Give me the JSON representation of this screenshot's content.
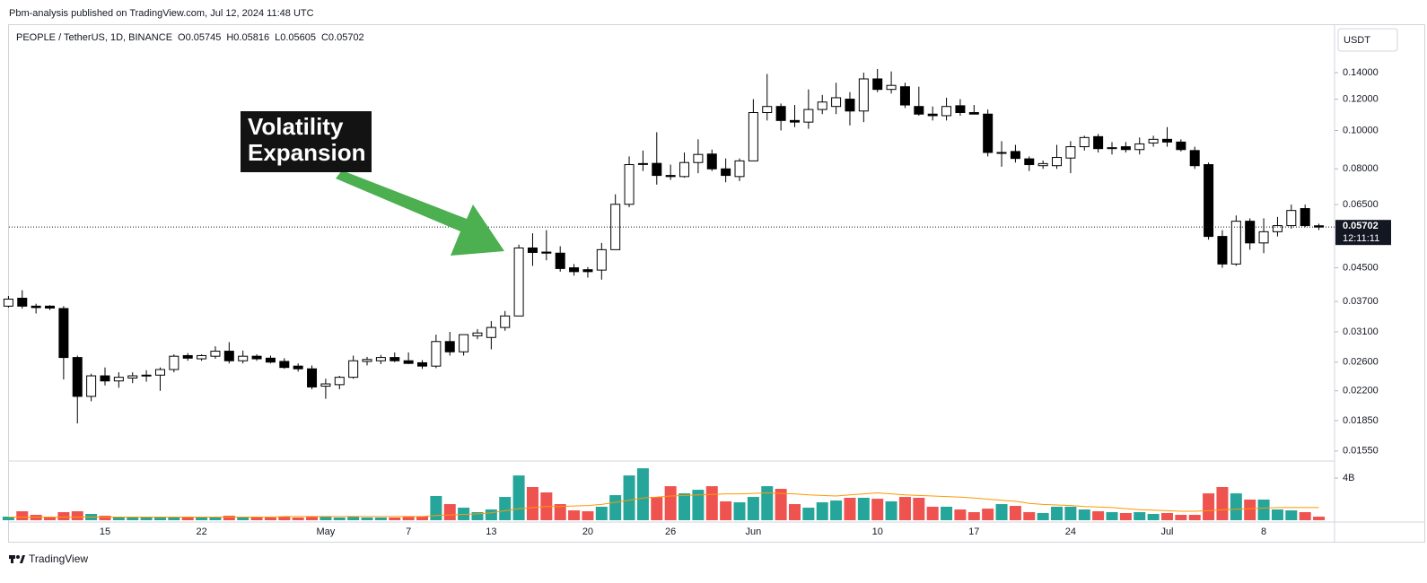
{
  "header": {
    "published": "Pbm-analysis published on TradingView.com, Jul 12, 2024 11:48 UTC"
  },
  "footer": {
    "brand": "TradingView"
  },
  "chart_data": {
    "type": "candlestick",
    "title": "PEOPLE / TetherUS, 1D, BINANCE",
    "legend_ohlc": [
      "O0.05745",
      "H0.05816",
      "L0.05605",
      "C0.05702"
    ],
    "currency": "USDT",
    "countdown": "12:11:11",
    "annotation": [
      "Volatility",
      "Expansion"
    ],
    "categories": [
      null,
      null,
      null,
      null,
      null,
      null,
      null,
      "15",
      null,
      null,
      null,
      null,
      null,
      null,
      "22",
      null,
      null,
      null,
      null,
      null,
      null,
      null,
      null,
      "May",
      null,
      null,
      null,
      null,
      null,
      "7",
      null,
      null,
      null,
      null,
      null,
      "13",
      null,
      null,
      null,
      null,
      null,
      null,
      "20",
      null,
      null,
      null,
      null,
      null,
      "26",
      null,
      null,
      null,
      null,
      null,
      "Jun",
      null,
      null,
      null,
      null,
      null,
      null,
      null,
      null,
      "10",
      null,
      null,
      null,
      null,
      null,
      null,
      "17",
      null,
      null,
      null,
      null,
      null,
      null,
      "24",
      null,
      null,
      null,
      null,
      null,
      null,
      "Jul",
      null,
      null,
      null,
      null,
      null,
      null,
      "8",
      null,
      null,
      null,
      null
    ],
    "open": [
      0.036,
      0.0377,
      0.036,
      0.036,
      0.0355,
      0.0267,
      0.0213,
      0.024,
      0.0233,
      0.0237,
      0.024,
      0.0241,
      0.0249,
      0.027,
      0.0265,
      0.0269,
      0.0277,
      0.0262,
      0.0269,
      0.0266,
      0.0261,
      0.0254,
      0.025,
      0.0226,
      0.0228,
      0.0238,
      0.0261,
      0.0262,
      0.0267,
      0.0262,
      0.0259,
      0.0254,
      0.0293,
      0.0276,
      0.0303,
      0.03,
      0.0318,
      0.034,
      0.0505,
      0.0493,
      0.049,
      0.045,
      0.0445,
      0.0444,
      0.05,
      0.0651,
      0.0822,
      0.0826,
      0.077,
      0.0765,
      0.083,
      0.0872,
      0.08,
      0.0765,
      0.0838,
      0.111,
      0.115,
      0.106,
      0.105,
      0.113,
      0.115,
      0.12,
      0.112,
      0.135,
      0.127,
      0.129,
      0.115,
      0.11,
      0.109,
      0.1155,
      0.111,
      0.11,
      0.088,
      0.0885,
      0.0848,
      0.0815,
      0.0815,
      0.0852,
      0.091,
      0.0965,
      0.09,
      0.091,
      0.0895,
      0.093,
      0.095,
      0.0935,
      0.089,
      0.082,
      0.054,
      0.046,
      0.059,
      0.052,
      0.0555,
      0.0575,
      0.0635,
      0.05745
    ],
    "high": [
      0.0382,
      0.0395,
      0.0365,
      0.0362,
      0.036,
      0.027,
      0.0243,
      0.0252,
      0.0245,
      0.0245,
      0.0248,
      0.0252,
      0.0272,
      0.0274,
      0.0272,
      0.0285,
      0.0292,
      0.0278,
      0.0272,
      0.027,
      0.0266,
      0.0258,
      0.0255,
      0.0236,
      0.024,
      0.027,
      0.0268,
      0.0271,
      0.0275,
      0.0275,
      0.0263,
      0.0305,
      0.031,
      0.0305,
      0.0315,
      0.033,
      0.035,
      0.0515,
      0.055,
      0.056,
      0.051,
      0.046,
      0.0452,
      0.052,
      0.069,
      0.086,
      0.089,
      0.099,
      0.082,
      0.088,
      0.095,
      0.0895,
      0.085,
      0.085,
      0.12,
      0.139,
      0.117,
      0.116,
      0.127,
      0.123,
      0.132,
      0.125,
      0.14,
      0.143,
      0.141,
      0.132,
      0.129,
      0.115,
      0.121,
      0.12,
      0.116,
      0.113,
      0.094,
      0.092,
      0.086,
      0.084,
      0.092,
      0.094,
      0.097,
      0.098,
      0.0935,
      0.0935,
      0.096,
      0.097,
      0.102,
      0.095,
      0.091,
      0.083,
      0.056,
      0.061,
      0.06,
      0.06,
      0.0605,
      0.065,
      0.065,
      0.05816
    ],
    "low": [
      0.0357,
      0.0355,
      0.0345,
      0.0352,
      0.0235,
      0.0182,
      0.0207,
      0.0227,
      0.0224,
      0.023,
      0.0232,
      0.022,
      0.0245,
      0.0262,
      0.0262,
      0.0265,
      0.0258,
      0.0258,
      0.0262,
      0.0258,
      0.025,
      0.0246,
      0.0222,
      0.021,
      0.0222,
      0.0236,
      0.0255,
      0.0257,
      0.026,
      0.0257,
      0.025,
      0.0251,
      0.027,
      0.027,
      0.0297,
      0.028,
      0.0312,
      0.034,
      0.0455,
      0.047,
      0.044,
      0.043,
      0.0425,
      0.042,
      0.05,
      0.064,
      0.079,
      0.073,
      0.075,
      0.076,
      0.078,
      0.079,
      0.074,
      0.0745,
      0.0838,
      0.106,
      0.1,
      0.102,
      0.101,
      0.11,
      0.11,
      0.103,
      0.105,
      0.125,
      0.124,
      0.114,
      0.109,
      0.106,
      0.106,
      0.109,
      0.11,
      0.086,
      0.081,
      0.083,
      0.079,
      0.08,
      0.08,
      0.078,
      0.089,
      0.088,
      0.087,
      0.088,
      0.087,
      0.091,
      0.091,
      0.0885,
      0.08,
      0.053,
      0.045,
      0.0455,
      0.05,
      0.049,
      0.054,
      0.0565,
      0.057,
      0.05605
    ],
    "close": [
      0.0375,
      0.036,
      0.0357,
      0.0356,
      0.0267,
      0.0213,
      0.024,
      0.0233,
      0.0238,
      0.024,
      0.0241,
      0.0249,
      0.0269,
      0.0266,
      0.027,
      0.0277,
      0.0262,
      0.0269,
      0.0265,
      0.026,
      0.0252,
      0.025,
      0.0225,
      0.0229,
      0.0238,
      0.0262,
      0.0264,
      0.0267,
      0.0262,
      0.0258,
      0.0254,
      0.0293,
      0.0276,
      0.0305,
      0.0308,
      0.0318,
      0.034,
      0.0505,
      0.0492,
      0.049,
      0.0448,
      0.044,
      0.044,
      0.05,
      0.0651,
      0.082,
      0.0825,
      0.077,
      0.0765,
      0.083,
      0.087,
      0.08,
      0.077,
      0.0838,
      0.111,
      0.115,
      0.106,
      0.105,
      0.113,
      0.118,
      0.121,
      0.112,
      0.135,
      0.127,
      0.13,
      0.116,
      0.11,
      0.109,
      0.115,
      0.111,
      0.11,
      0.088,
      0.088,
      0.085,
      0.082,
      0.0825,
      0.0855,
      0.091,
      0.096,
      0.09,
      0.0905,
      0.0895,
      0.0925,
      0.095,
      0.0935,
      0.0895,
      0.0815,
      0.054,
      0.046,
      0.059,
      0.052,
      0.0555,
      0.0575,
      0.0628,
      0.0575,
      0.05702
    ],
    "volume": [
      340000000.0,
      850000000.0,
      510000000.0,
      340000000.0,
      765000000.0,
      850000000.0,
      595000000.0,
      425000000.0,
      340000000.0,
      340000000.0,
      340000000.0,
      340000000.0,
      340000000.0,
      255000000.0,
      255000000.0,
      340000000.0,
      425000000.0,
      340000000.0,
      255000000.0,
      255000000.0,
      340000000.0,
      255000000.0,
      340000000.0,
      340000000.0,
      255000000.0,
      340000000.0,
      255000000.0,
      255000000.0,
      255000000.0,
      340000000.0,
      340000000.0,
      2300000000.0,
      1530000000.0,
      1190000000.0,
      765000000.0,
      1020000000.0,
      2210000000.0,
      4250000000.0,
      3150000000.0,
      2640000000.0,
      1530000000.0,
      935000000.0,
      850000000.0,
      1280000000.0,
      2380000000.0,
      4250000000.0,
      4930000000.0,
      2210000000.0,
      3230000000.0,
      2550000000.0,
      2890000000.0,
      3230000000.0,
      1790000000.0,
      1700000000.0,
      2210000000.0,
      3230000000.0,
      2980000000.0,
      1530000000.0,
      1190000000.0,
      1700000000.0,
      1870000000.0,
      2130000000.0,
      2130000000.0,
      2040000000.0,
      1790000000.0,
      2210000000.0,
      2130000000.0,
      1280000000.0,
      1280000000.0,
      1020000000.0,
      765000000.0,
      1100000000.0,
      1530000000.0,
      1360000000.0,
      765000000.0,
      680000000.0,
      1280000000.0,
      1280000000.0,
      1020000000.0,
      850000000.0,
      765000000.0,
      680000000.0,
      765000000.0,
      595000000.0,
      680000000.0,
      510000000.0,
      510000000.0,
      2550000000.0,
      3150000000.0,
      2550000000.0,
      1960000000.0,
      1960000000.0,
      1020000000.0,
      935000000.0,
      765000000.0,
      340000000.0
    ],
    "volume_ma": [
      300000000.0,
      300000000.0,
      300000000.0,
      300000000.0,
      300000000.0,
      300000000.0,
      300000000.0,
      300000000.0,
      300000000.0,
      300000000.0,
      300000000.0,
      300000000.0,
      300000000.0,
      300000000.0,
      300000000.0,
      300000000.0,
      300000000.0,
      300000000.0,
      300000000.0,
      300000000.0,
      350000000.0,
      350000000.0,
      350000000.0,
      350000000.0,
      350000000.0,
      350000000.0,
      350000000.0,
      350000000.0,
      350000000.0,
      350000000.0,
      350000000.0,
      450000000.0,
      500000000.0,
      550000000.0,
      600000000.0,
      700000000.0,
      900000000.0,
      1100000000.0,
      1200000000.0,
      1300000000.0,
      1300000000.0,
      1350000000.0,
      1400000000.0,
      1500000000.0,
      1700000000.0,
      1900000000.0,
      2100000000.0,
      2200000000.0,
      2300000000.0,
      2350000000.0,
      2400000000.0,
      2450000000.0,
      2500000000.0,
      2500000000.0,
      2550000000.0,
      2600000000.0,
      2550000000.0,
      2500000000.0,
      2400000000.0,
      2350000000.0,
      2300000000.0,
      2400000000.0,
      2500000000.0,
      2600000000.0,
      2500000000.0,
      2400000000.0,
      2350000000.0,
      2300000000.0,
      2250000000.0,
      2200000000.0,
      2100000000.0,
      2000000000.0,
      1900000000.0,
      1800000000.0,
      1600000000.0,
      1500000000.0,
      1450000000.0,
      1400000000.0,
      1300000000.0,
      1250000000.0,
      1200000000.0,
      1100000000.0,
      1000000000.0,
      950000000.0,
      900000000.0,
      850000000.0,
      850000000.0,
      900000000.0,
      1000000000.0,
      1050000000.0,
      1100000000.0,
      1150000000.0,
      1200000000.0,
      1200000000.0,
      1200000000.0,
      1200000000.0
    ],
    "log_scale": true,
    "ylim": [
      0.0147,
      0.1846
    ],
    "yticks": [
      {
        "value": 0.14,
        "label": "0.14000"
      },
      {
        "value": 0.12,
        "label": "0.12000"
      },
      {
        "value": 0.1,
        "label": "0.10000"
      },
      {
        "value": 0.08,
        "label": "0.08000"
      },
      {
        "value": 0.065,
        "label": "0.06500"
      },
      {
        "value": 0.045,
        "label": "0.04500"
      },
      {
        "value": 0.037,
        "label": "0.03700"
      },
      {
        "value": 0.031,
        "label": "0.03100"
      },
      {
        "value": 0.026,
        "label": "0.02600"
      },
      {
        "value": 0.022,
        "label": "0.02200"
      },
      {
        "value": 0.0185,
        "label": "0.01850"
      },
      {
        "value": 0.0155,
        "label": "0.01550"
      }
    ],
    "volume_lim": [
      0,
      5450000000.0
    ],
    "volume_ticks": [
      {
        "value": 4000000000.0,
        "label": "4B"
      }
    ],
    "grid": false,
    "up_color": "#ffffff",
    "down_color": "#000000",
    "volume_up_color": "#26a69a",
    "volume_down_color": "#ef5350",
    "ma_color": "#ff9800"
  }
}
